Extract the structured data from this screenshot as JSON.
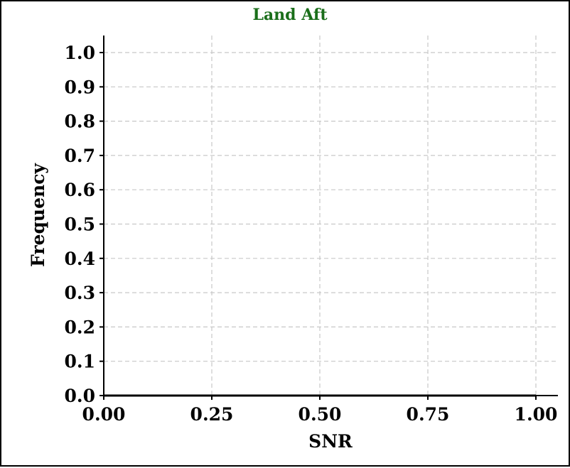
{
  "chart_data": {
    "type": "line",
    "title": "Land Aft",
    "title_color": "#1a6e1a",
    "xlabel": "SNR",
    "ylabel": "Frequency",
    "xlim": [
      0.0,
      1.0
    ],
    "ylim": [
      0.0,
      1.0
    ],
    "x_ticks": [
      "0.00",
      "0.25",
      "0.50",
      "0.75",
      "1.00"
    ],
    "y_ticks": [
      "0.0",
      "0.1",
      "0.2",
      "0.3",
      "0.4",
      "0.5",
      "0.6",
      "0.7",
      "0.8",
      "0.9",
      "1.0"
    ],
    "grid": true,
    "grid_color": "#c8c8c8",
    "series": [
      {
        "x": [
          0.0,
          1.0
        ],
        "y": [
          0.0,
          0.0
        ],
        "color": "#000000"
      }
    ]
  }
}
